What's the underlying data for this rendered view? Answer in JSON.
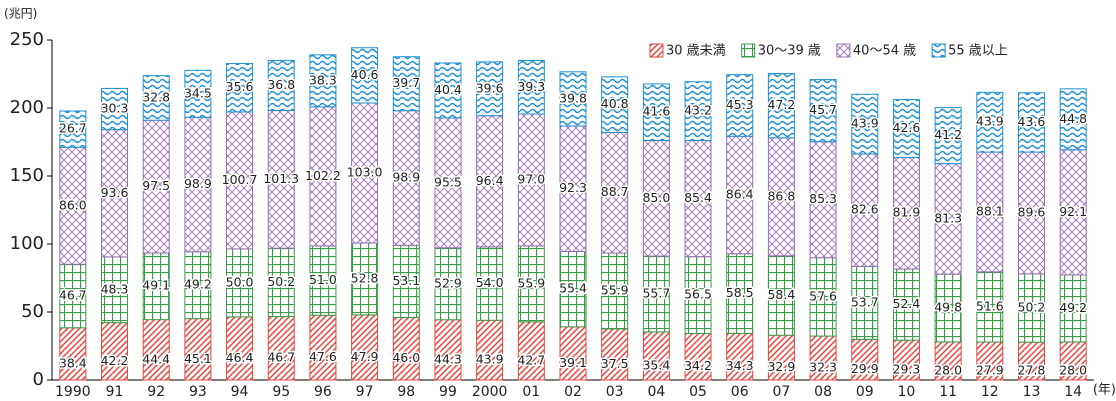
{
  "chart_data": {
    "type": "stacked_bar",
    "y_label": "(兆円)",
    "x_label": "(年)",
    "categories": [
      "1990",
      "91",
      "92",
      "93",
      "94",
      "95",
      "96",
      "97",
      "98",
      "99",
      "2000",
      "01",
      "02",
      "03",
      "04",
      "05",
      "06",
      "07",
      "08",
      "09",
      "10",
      "11",
      "12",
      "13",
      "14"
    ],
    "ylim": [
      0,
      250
    ],
    "yticks": [
      0,
      50,
      100,
      150,
      200,
      250
    ],
    "series": [
      {
        "name": "30 歳未満",
        "color": "#e6453c",
        "pattern": "diagonal",
        "values": [
          38.4,
          42.2,
          44.4,
          45.1,
          46.4,
          46.7,
          47.6,
          47.9,
          46.0,
          44.3,
          43.9,
          42.7,
          39.1,
          37.5,
          35.4,
          34.2,
          34.3,
          32.9,
          32.3,
          29.9,
          29.3,
          28.0,
          27.9,
          27.8,
          28.0
        ],
        "value_labels": [
          "38.4",
          "42.2",
          "44.4",
          "45.1",
          "46.4",
          "46.7",
          "47.6",
          "47.9",
          "46.0",
          "44.3",
          "43.9",
          "42.7",
          "39.1",
          "37.5",
          "35.4",
          "34.2",
          "34.3",
          "32.9",
          "32.3",
          "29.9",
          "29.3",
          "28.0",
          "27.9",
          "27.8",
          "28.0"
        ]
      },
      {
        "name": "30～39 歳",
        "color": "#3e9b4c",
        "pattern": "grid",
        "values": [
          46.7,
          48.3,
          49.1,
          49.2,
          50.0,
          50.2,
          51.0,
          52.8,
          53.1,
          52.9,
          54.0,
          55.9,
          55.4,
          55.9,
          55.7,
          56.5,
          58.5,
          58.4,
          57.6,
          53.7,
          52.4,
          49.8,
          51.6,
          50.2,
          49.2
        ],
        "value_labels": [
          "46.7",
          "48.3",
          "49.1",
          "49.2",
          "50.0",
          "50.2",
          "51.0",
          "52.8",
          "53.1",
          "52.9",
          "54.0",
          "55.9",
          "55.4",
          "55.9",
          "55.7",
          "56.5",
          "58.5",
          "58.4",
          "57.6",
          "53.7",
          "52.4",
          "49.8",
          "51.6",
          "50.2",
          "49.2"
        ]
      },
      {
        "name": "40～54 歳",
        "color": "#9a6cb6",
        "pattern": "cross",
        "values": [
          86.0,
          93.6,
          97.5,
          98.9,
          100.7,
          101.3,
          102.2,
          103.0,
          98.9,
          95.5,
          96.4,
          97.0,
          92.3,
          88.7,
          85.0,
          85.4,
          86.4,
          86.8,
          85.3,
          82.6,
          81.9,
          81.3,
          88.1,
          89.6,
          92.1
        ],
        "value_labels": [
          "86.0",
          "93.6",
          "97.5",
          "98.9",
          "100.7",
          "101.3",
          "102.2",
          "103.0",
          "98.9",
          "95.5",
          "96.4",
          "97.0",
          "92.3",
          "88.7",
          "85.0",
          "85.4",
          "86.4",
          "86.8",
          "85.3",
          "82.6",
          "81.9",
          "81.3",
          "88.1",
          "89.6",
          "92.1"
        ]
      },
      {
        "name": "55 歳以上",
        "color": "#1f8fd3",
        "pattern": "wave",
        "values": [
          26.7,
          30.3,
          32.8,
          34.5,
          35.6,
          36.8,
          38.3,
          40.6,
          39.7,
          40.4,
          39.6,
          39.3,
          39.8,
          40.8,
          41.6,
          43.2,
          45.3,
          47.2,
          45.7,
          43.9,
          42.6,
          41.2,
          43.9,
          43.6,
          44.8
        ],
        "value_labels": [
          "26.7",
          "30.3",
          "32.8",
          "34.5",
          "35.6",
          "36.8",
          "38.3",
          "40.6",
          "39.7",
          "40.4",
          "39.6",
          "39.3",
          "39.8",
          "40.8",
          "41.6",
          "43.2",
          "45.3",
          "47.2",
          "45.7",
          "43.9",
          "42.6",
          "41.2",
          "43.9",
          "43.6",
          "44.8"
        ]
      }
    ]
  }
}
